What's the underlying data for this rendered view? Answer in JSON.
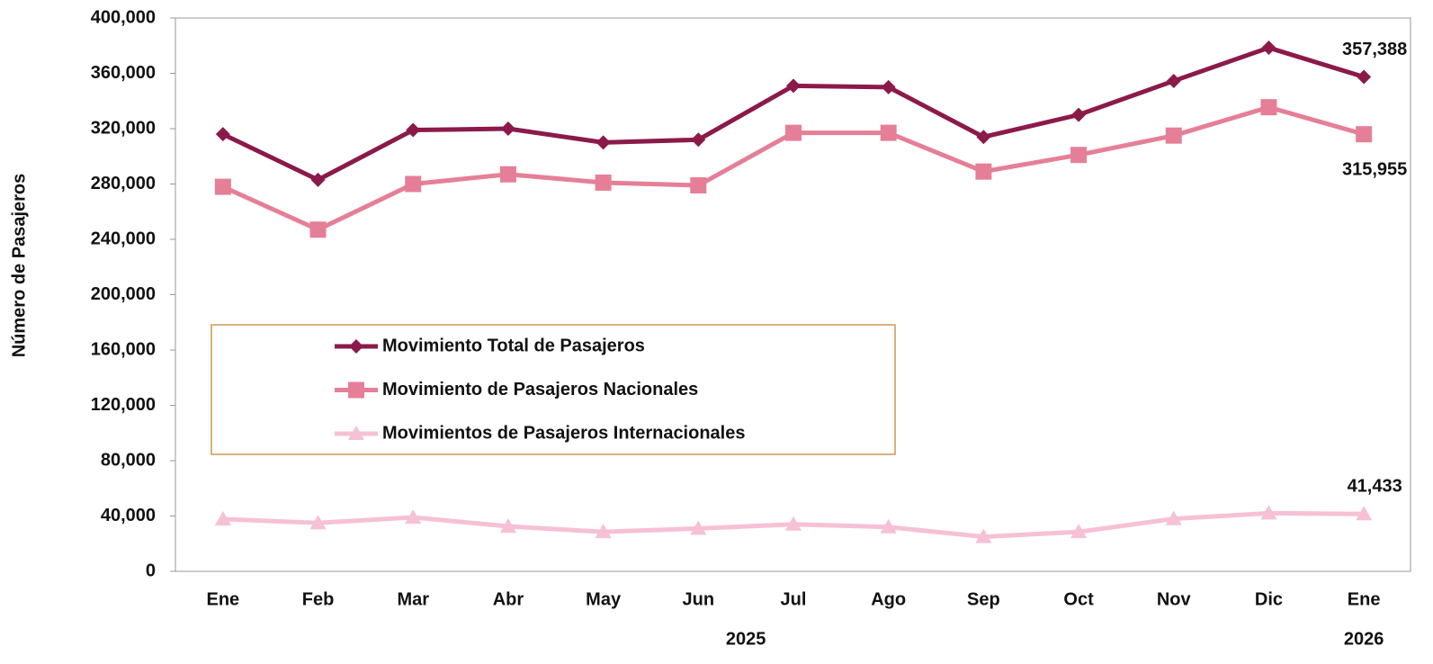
{
  "chart_data": {
    "type": "line",
    "y_label": "Número de Pasajeros",
    "categories": [
      "Ene",
      "Feb",
      "Mar",
      "Abr",
      "May",
      "Jun",
      "Jul",
      "Ago",
      "Sep",
      "Oct",
      "Nov",
      "Dic",
      "Ene"
    ],
    "year_labels": [
      "2025",
      "2026"
    ],
    "series": [
      {
        "name": "Movimiento Total de Pasajeros",
        "color": "#8b1a4a",
        "marker": "diamond",
        "values": [
          316000,
          283000,
          319000,
          320000,
          310000,
          312000,
          351000,
          350000,
          314000,
          330000,
          354500,
          378500,
          357388
        ],
        "value_labels": [
          null,
          null,
          null,
          null,
          null,
          null,
          null,
          null,
          null,
          null,
          null,
          null,
          "357,388"
        ]
      },
      {
        "name": "Movimiento de Pasajeros Nacionales",
        "color": "#e57f97",
        "marker": "square",
        "values": [
          278000,
          247000,
          280000,
          287000,
          281000,
          279000,
          317000,
          317000,
          289000,
          301000,
          315000,
          335500,
          315955
        ],
        "value_labels": [
          null,
          null,
          null,
          null,
          null,
          null,
          null,
          null,
          null,
          null,
          null,
          null,
          "315,955"
        ]
      },
      {
        "name": "Movimientos de Pasajeros Internacionales",
        "color": "#f6c0d5",
        "marker": "triangle",
        "values": [
          37700,
          35000,
          39000,
          32500,
          28500,
          31000,
          34000,
          32000,
          25000,
          28500,
          38000,
          42000,
          41433
        ],
        "value_labels": [
          null,
          null,
          null,
          null,
          null,
          null,
          null,
          null,
          null,
          null,
          null,
          null,
          "41,433"
        ]
      }
    ],
    "ylim": [
      0,
      400000
    ],
    "yticks": [
      0,
      {
        "value": 40000,
        "label": "40,000"
      },
      {
        "value": 80000,
        "label": "80,000"
      },
      {
        "value": 120000,
        "label": "120,000"
      },
      {
        "value": 160000,
        "label": "160,000"
      },
      {
        "value": 200000,
        "label": "200,000"
      },
      {
        "value": 240000,
        "label": "240,000"
      },
      {
        "value": 280000,
        "label": "280,000"
      },
      {
        "value": 320000,
        "label": "320,000"
      },
      {
        "value": 360000,
        "label": "360,000"
      },
      {
        "value": 400000,
        "label": "400,000"
      }
    ],
    "grid": false
  }
}
